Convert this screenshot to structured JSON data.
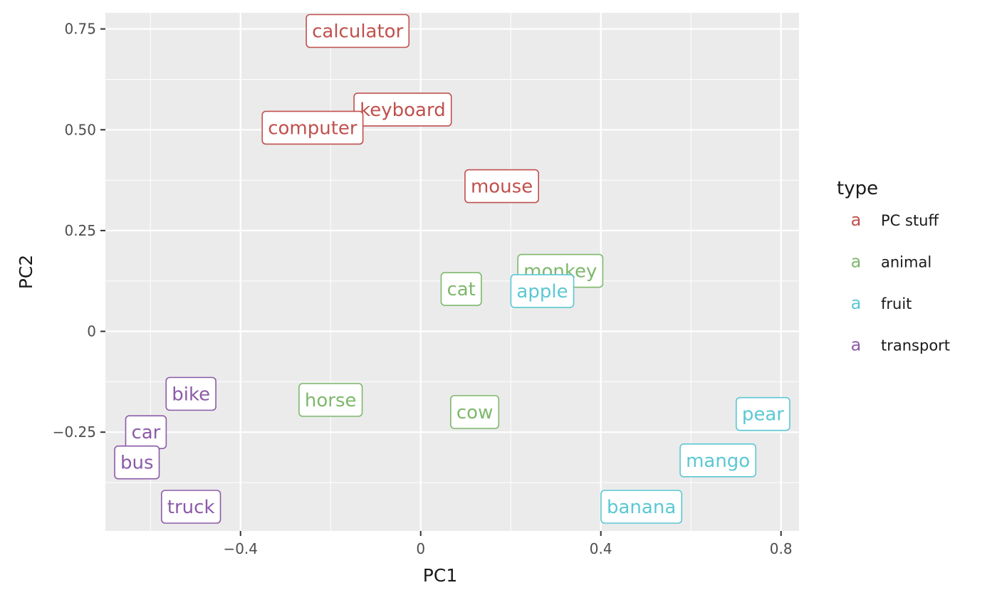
{
  "chart_data": {
    "type": "scatter",
    "xlabel": "PC1",
    "ylabel": "PC2",
    "xlim": [
      -0.7,
      0.84
    ],
    "ylim": [
      -0.495,
      0.79
    ],
    "x_ticks": [
      {
        "value": -0.4,
        "label": "−0.4"
      },
      {
        "value": 0,
        "label": "0"
      },
      {
        "value": 0.4,
        "label": "0.4"
      },
      {
        "value": 0.8,
        "label": "0.8"
      }
    ],
    "y_ticks": [
      {
        "value": 0.75,
        "label": "0.75"
      },
      {
        "value": 0.5,
        "label": "0.50"
      },
      {
        "value": 0.25,
        "label": "0.25"
      },
      {
        "value": 0,
        "label": "0"
      },
      {
        "value": -0.25,
        "label": "−0.25"
      }
    ],
    "grid": true,
    "legend": {
      "title": "type",
      "position": "right",
      "key_glyph": "a",
      "entries": [
        {
          "label": "PC stuff",
          "color": "#C77CFF"
        },
        {
          "label": "animal",
          "color": "#7CAE00"
        },
        {
          "label": "fruit",
          "color": "#00BFC4"
        },
        {
          "label": "transport",
          "color": "#C77CFF"
        }
      ]
    },
    "colors": {
      "PC stuff": "#C0504D",
      "animal": "#7DB86B",
      "fruit": "#5BC8D3",
      "transport": "#8C5BA8"
    },
    "points": [
      {
        "label": "calculator",
        "type": "PC stuff",
        "x": -0.14,
        "y": 0.745
      },
      {
        "label": "keyboard",
        "type": "PC stuff",
        "x": -0.04,
        "y": 0.55
      },
      {
        "label": "computer",
        "type": "PC stuff",
        "x": -0.24,
        "y": 0.505
      },
      {
        "label": "mouse",
        "type": "PC stuff",
        "x": 0.18,
        "y": 0.36
      },
      {
        "label": "monkey",
        "type": "animal",
        "x": 0.31,
        "y": 0.15
      },
      {
        "label": "cat",
        "type": "animal",
        "x": 0.09,
        "y": 0.105
      },
      {
        "label": "horse",
        "type": "animal",
        "x": -0.2,
        "y": -0.17
      },
      {
        "label": "cow",
        "type": "animal",
        "x": 0.12,
        "y": -0.2
      },
      {
        "label": "apple",
        "type": "fruit",
        "x": 0.27,
        "y": 0.1
      },
      {
        "label": "pear",
        "type": "fruit",
        "x": 0.76,
        "y": -0.205
      },
      {
        "label": "mango",
        "type": "fruit",
        "x": 0.66,
        "y": -0.32
      },
      {
        "label": "banana",
        "type": "fruit",
        "x": 0.49,
        "y": -0.435
      },
      {
        "label": "bike",
        "type": "transport",
        "x": -0.51,
        "y": -0.155
      },
      {
        "label": "car",
        "type": "transport",
        "x": -0.61,
        "y": -0.25
      },
      {
        "label": "bus",
        "type": "transport",
        "x": -0.63,
        "y": -0.325
      },
      {
        "label": "truck",
        "type": "transport",
        "x": -0.51,
        "y": -0.435
      }
    ]
  }
}
